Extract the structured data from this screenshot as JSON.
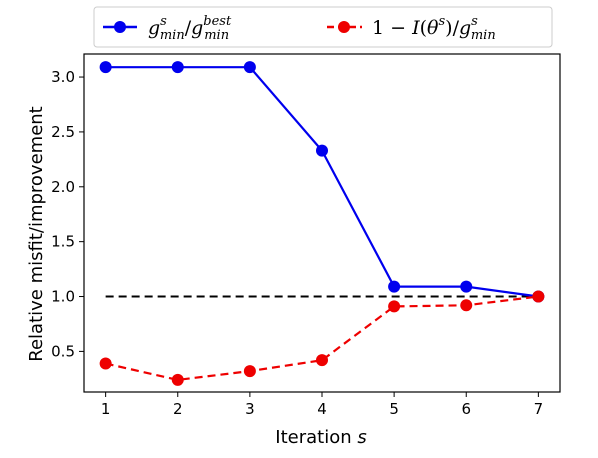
{
  "chart_data": {
    "type": "line",
    "x": [
      1,
      2,
      3,
      4,
      5,
      6,
      7
    ],
    "xlabel": "Iteration s",
    "ylabel": "Relative misfit/improvement",
    "xlim": [
      0.7,
      7.3
    ],
    "ylim": [
      0.13,
      3.21
    ],
    "xticks": [
      "1",
      "2",
      "3",
      "4",
      "5",
      "6",
      "7"
    ],
    "yticks": [
      "0.5",
      "1.0",
      "1.5",
      "2.0",
      "2.5",
      "3.0"
    ],
    "ytick_values": [
      0.5,
      1.0,
      1.5,
      2.0,
      2.5,
      3.0
    ],
    "grid": false,
    "legend_position": "top, outside the plot",
    "series": [
      {
        "name": "g^s_min/g^best_min",
        "color": "#0000ee",
        "linestyle": "solid",
        "marker": "circle",
        "values": [
          3.09,
          3.09,
          3.09,
          2.33,
          1.09,
          1.09,
          1.0
        ]
      },
      {
        "name": "1 − I(θ^s)/g^s_min",
        "color": "#ee0000",
        "linestyle": "dashed",
        "marker": "circle",
        "values": [
          0.39,
          0.24,
          0.32,
          0.42,
          0.91,
          0.92,
          1.0
        ]
      }
    ],
    "reference_line": {
      "y": 1.0,
      "color": "#000000",
      "linestyle": "dashed",
      "x_range": [
        1,
        7
      ]
    }
  }
}
